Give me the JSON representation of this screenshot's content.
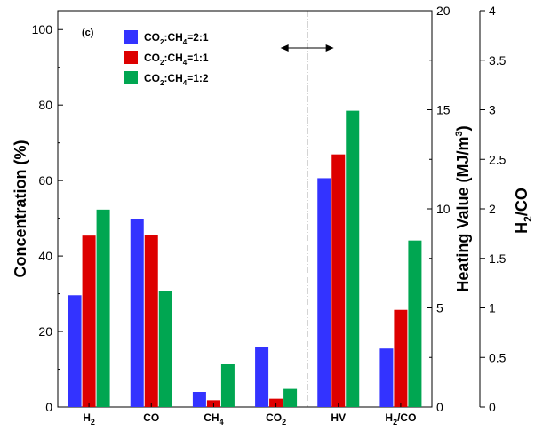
{
  "chart_data": {
    "type": "bar",
    "panel_label": "(c)",
    "categories": [
      {
        "name": "H",
        "sub": "2",
        "suffix": ""
      },
      {
        "name": "CO",
        "sub": "",
        "suffix": ""
      },
      {
        "name": "CH",
        "sub": "4",
        "suffix": ""
      },
      {
        "name": "CO",
        "sub": "2",
        "suffix": ""
      },
      {
        "name": "HV",
        "sub": "",
        "suffix": ""
      },
      {
        "name": "H",
        "sub": "2",
        "suffix": "/CO"
      }
    ],
    "series": [
      {
        "name": "CO2:CH4=2:1",
        "color": "#3333ff",
        "values": [
          29.6,
          49.8,
          4.0,
          16.0,
          11.55,
          0.59
        ]
      },
      {
        "name": "CO2:CH4=1:1",
        "color": "#dd0000",
        "values": [
          45.4,
          45.6,
          1.8,
          2.2,
          12.75,
          0.98
        ]
      },
      {
        "name": "CO2:CH4=1:2",
        "color": "#00a651",
        "values": [
          52.3,
          30.8,
          11.3,
          4.8,
          14.95,
          1.68
        ]
      }
    ],
    "legend": {
      "placement": "top-left",
      "entries": [
        {
          "a": "CO",
          "a_sub": "2",
          "b": ":CH",
          "b_sub": "4",
          "c": "=2:1"
        },
        {
          "a": "CO",
          "a_sub": "2",
          "b": ":CH",
          "b_sub": "4",
          "c": "=1:1"
        },
        {
          "a": "CO",
          "a_sub": "2",
          "b": ":CH",
          "b_sub": "4",
          "c": "=1:2"
        }
      ]
    },
    "axes": {
      "left": {
        "label": "Concentration (%)",
        "ylim": [
          0,
          105
        ],
        "ticks": [
          0,
          20,
          40,
          60,
          80,
          100
        ],
        "tick_labels": [
          "0",
          "20",
          "40",
          "60",
          "80",
          "100"
        ],
        "applies_to_categories": [
          0,
          1,
          2,
          3
        ]
      },
      "right1": {
        "label_main": "Heating Value (MJ/m",
        "label_sup": "3",
        "label_end": ")",
        "ylim": [
          0,
          20
        ],
        "ticks": [
          0,
          5,
          10,
          15,
          20
        ],
        "tick_labels": [
          "0",
          "5",
          "10",
          "15",
          "20"
        ],
        "applies_to_categories": [
          4
        ]
      },
      "right2": {
        "label_a": "H",
        "label_sub": "2",
        "label_b": "/CO",
        "ylim": [
          0,
          4
        ],
        "ticks": [
          0,
          0.5,
          1,
          1.5,
          2,
          2.5,
          3,
          3.5,
          4
        ],
        "tick_labels": [
          "0",
          "0.5",
          "1",
          "1.5",
          "2",
          "2.5",
          "3",
          "3.5",
          "4"
        ],
        "applies_to_categories": [
          5
        ]
      }
    },
    "separator_after_category": 3,
    "double_arrow": true
  }
}
